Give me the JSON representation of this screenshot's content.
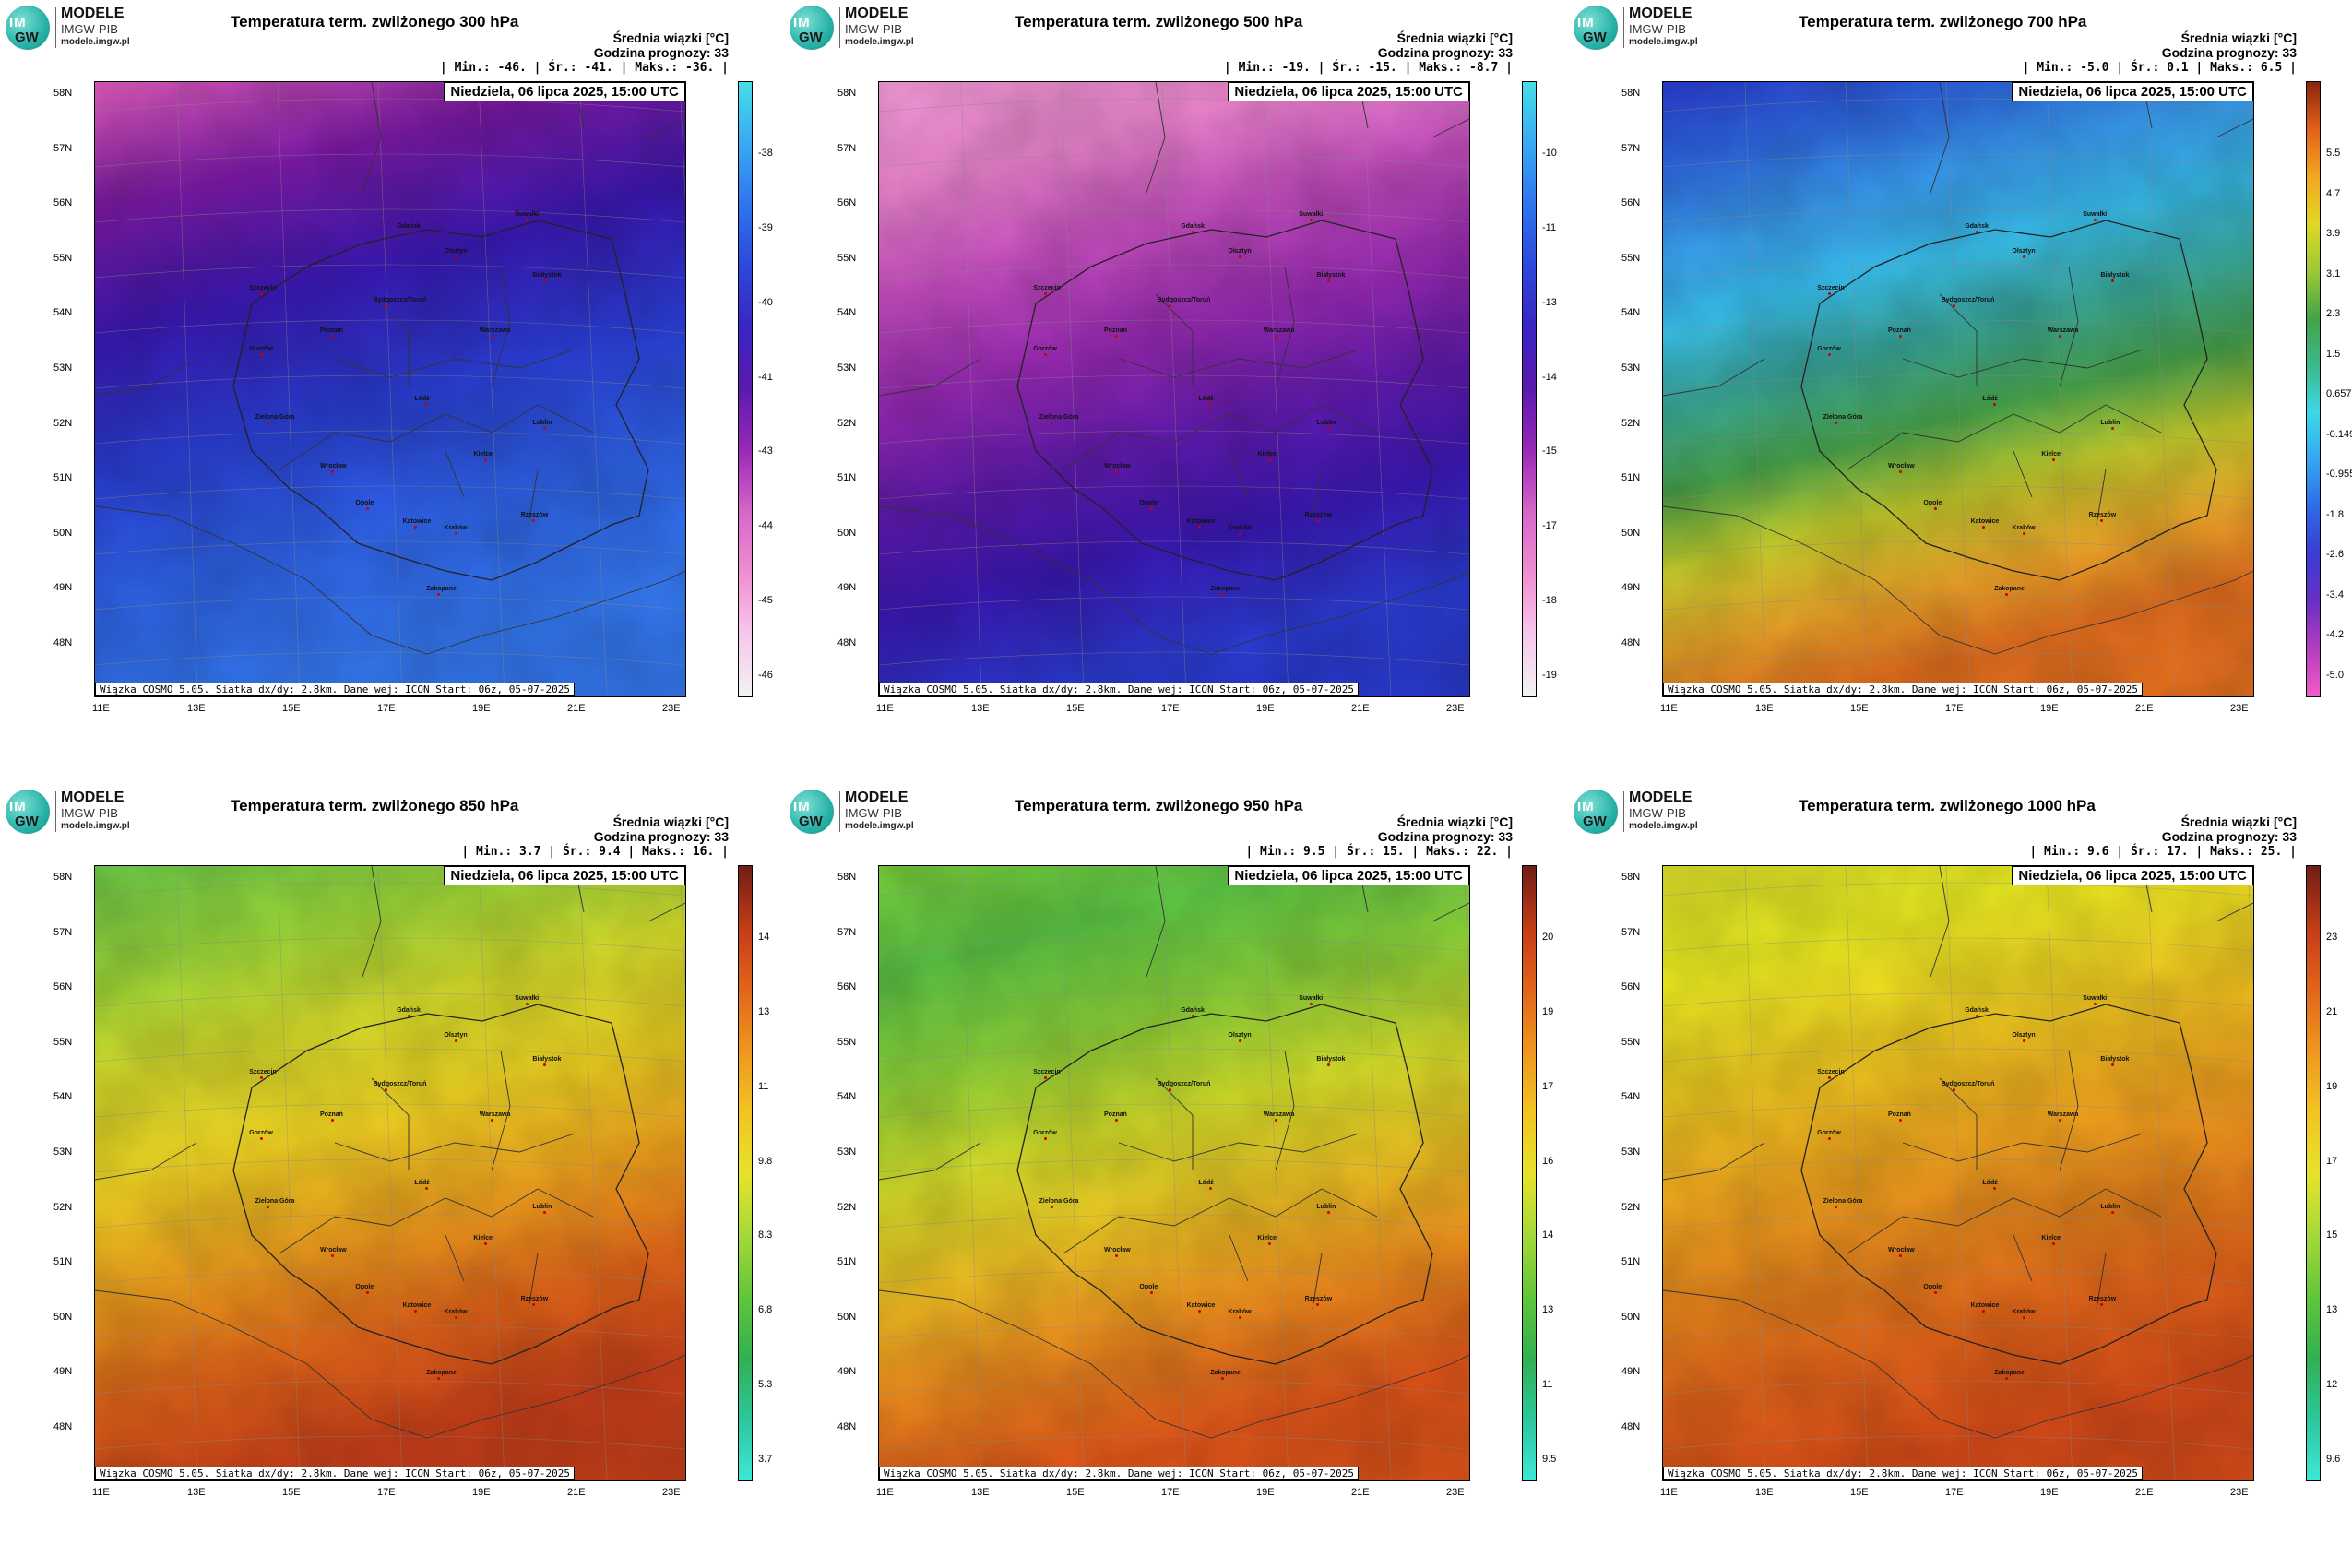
{
  "logo": {
    "mark_top": "IM",
    "mark_bottom": "GW",
    "name": "MODELE",
    "sub": "IMGW-PIB",
    "url": "modele.imgw.pl"
  },
  "common": {
    "units": "Średnia wiązki [°C]",
    "forecast_hour": "Godzina prognozy: 33",
    "date": "Niedziela, 06 lipca 2025, 15:00 UTC",
    "footer": "Wiązka COSMO 5.05. Siatka dx/dy: 2.8km. Dane wej: ICON Start: 06z, 05-07-2025",
    "lat_labels": [
      "58N",
      "57N",
      "56N",
      "55N",
      "54N",
      "53N",
      "52N",
      "51N",
      "50N",
      "49N",
      "48N"
    ],
    "lon_labels": [
      "11E",
      "13E",
      "15E",
      "17E",
      "19E",
      "21E",
      "23E"
    ],
    "cities": [
      "Gdańsk",
      "Suwałki",
      "Olsztyn",
      "Białystok",
      "Szczecin",
      "Bydgoszcz/Toruń",
      "Gorzów",
      "Poznań",
      "Warszawa",
      "Zielona Góra",
      "Łódź",
      "Lublin",
      "Wrocław",
      "Kielce",
      "Opole",
      "Katowice",
      "Kraków",
      "Rzeszów",
      "Zakopane"
    ]
  },
  "panels": [
    {
      "title": "Temperatura term. zwilżonego 300 hPa",
      "stats": "| Min.:   -46. | Śr.:   -41. | Maks.:   -36. |",
      "colorbar": [
        "-38",
        "-39",
        "-40",
        "-41",
        "-43",
        "-44",
        "-45",
        "-46"
      ],
      "colors": {
        "grad": [
          "#e85fc4",
          "#7d1aa8",
          "#3a19b5",
          "#2a3fd6",
          "#2f63e8",
          "#3478f0"
        ]
      }
    },
    {
      "title": "Temperatura term. zwilżonego 500 hPa",
      "stats": "| Min.:   -19. | Śr.:   -15. | Maks.:   -8.7 |",
      "colorbar": [
        "-10",
        "-11",
        "-13",
        "-14",
        "-15",
        "-17",
        "-18",
        "-19"
      ],
      "colors": {
        "grad": [
          "#f49ad9",
          "#ee86d0",
          "#c84fc2",
          "#9a2ab6",
          "#5f1ab0",
          "#3a19b5",
          "#2b3cd4"
        ]
      }
    },
    {
      "title": "Temperatura term. zwilżonego 700 hPa",
      "stats": "| Min.:   -5.0 | Śr.:   0.1 | Maks.:   6.5 |",
      "colorbar": [
        "5.5",
        "4.7",
        "3.9",
        "3.1",
        "2.3",
        "1.5",
        "0.657",
        "-0.149",
        "-0.955",
        "-1.8",
        "-2.6",
        "-3.4",
        "-4.2",
        "-5.0"
      ],
      "colors": {
        "grad": [
          "#2a3bd0",
          "#2f6ae6",
          "#3a9df2",
          "#39c0ec",
          "#3aa89a",
          "#4aa84e",
          "#c7cf2c",
          "#f0a82a",
          "#e6701f"
        ]
      }
    },
    {
      "title": "Temperatura term. zwilżonego 850 hPa",
      "stats": "| Min.:   3.7 | Śr.:   9.4 | Maks.:   16. |",
      "colorbar": [
        "14",
        "13",
        "11",
        "9.8",
        "8.3",
        "6.8",
        "5.3",
        "3.7"
      ],
      "colors": {
        "grad": [
          "#6fd04a",
          "#9cd93a",
          "#d9e02c",
          "#f2d423",
          "#f2a11e",
          "#e4661a",
          "#c9401a"
        ]
      }
    },
    {
      "title": "Temperatura term. zwilżonego 950 hPa",
      "stats": "| Min.:   9.5 | Śr.:   15. | Maks.:   22. |",
      "colorbar": [
        "20",
        "19",
        "17",
        "16",
        "14",
        "13",
        "11",
        "9.5"
      ],
      "colors": {
        "grad": [
          "#7dd43e",
          "#5cc645",
          "#8cd43a",
          "#d6e02a",
          "#f2c123",
          "#ef8a1e",
          "#e2561a"
        ]
      }
    },
    {
      "title": "Temperatura term. zwilżonego 1000 hPa",
      "stats": "| Min.:   9.6 | Śr.:   17. | Maks.:   25. |",
      "colorbar": [
        "23",
        "21",
        "19",
        "17",
        "15",
        "13",
        "12",
        "9.6"
      ],
      "colors": {
        "grad": [
          "#dfe42a",
          "#eef021",
          "#f4d622",
          "#f2ae1f",
          "#ec8a1d",
          "#e4661a",
          "#d84c19"
        ]
      }
    }
  ]
}
